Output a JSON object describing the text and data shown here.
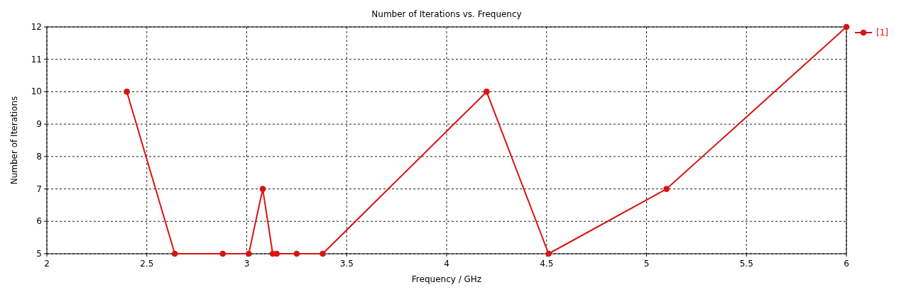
{
  "chart_data": {
    "type": "line",
    "title": "Number of Iterations vs. Frequency",
    "xlabel": "Frequency / GHz",
    "ylabel": "Number of Iterations",
    "x": [
      2.4,
      2.64,
      2.88,
      3.01,
      3.08,
      3.13,
      3.15,
      3.25,
      3.38,
      4.2,
      4.51,
      5.1,
      6
    ],
    "series": [
      {
        "name": "[1]",
        "color": "#d91414",
        "values": [
          10,
          5,
          5,
          5,
          7,
          5,
          5,
          5,
          5,
          10,
          5,
          7,
          12
        ]
      }
    ],
    "xlim": [
      2,
      6
    ],
    "xticks": [
      2,
      2.5,
      3,
      3.5,
      4,
      4.5,
      5,
      5.5,
      6
    ],
    "ylim": [
      5,
      12
    ],
    "yticks": [
      5,
      6,
      7,
      8,
      9,
      10,
      11,
      12
    ],
    "grid": true,
    "legend": "top right",
    "marker": "circle",
    "line_style": "solid"
  }
}
